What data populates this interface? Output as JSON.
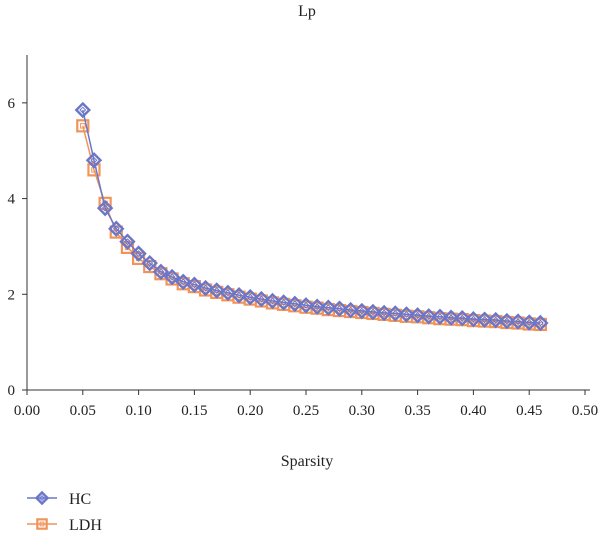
{
  "chart_data": {
    "type": "line",
    "title": "Lp",
    "xlabel": "Sparsity",
    "ylabel": "",
    "xlim": [
      0,
      0.5
    ],
    "ylim": [
      0,
      7
    ],
    "x_ticks": [
      "0.00",
      "0.05",
      "0.10",
      "0.15",
      "0.20",
      "0.25",
      "0.30",
      "0.35",
      "0.40",
      "0.45",
      "0.50"
    ],
    "y_ticks": [
      "0",
      "2",
      "4",
      "6"
    ],
    "grid": false,
    "legend_position": "bottom-left",
    "x": [
      0.05,
      0.06,
      0.07,
      0.08,
      0.09,
      0.1,
      0.11,
      0.12,
      0.13,
      0.14,
      0.15,
      0.16,
      0.17,
      0.18,
      0.19,
      0.2,
      0.21,
      0.22,
      0.23,
      0.24,
      0.25,
      0.26,
      0.27,
      0.28,
      0.29,
      0.3,
      0.31,
      0.32,
      0.33,
      0.34,
      0.35,
      0.36,
      0.37,
      0.38,
      0.39,
      0.4,
      0.41,
      0.42,
      0.43,
      0.44,
      0.45,
      0.46
    ],
    "series": [
      {
        "name": "HC",
        "color": "#6b76c9",
        "marker": "diamond",
        "values": [
          5.85,
          4.8,
          3.8,
          3.37,
          3.1,
          2.85,
          2.65,
          2.47,
          2.36,
          2.26,
          2.2,
          2.13,
          2.08,
          2.03,
          1.98,
          1.94,
          1.9,
          1.86,
          1.83,
          1.8,
          1.77,
          1.74,
          1.72,
          1.7,
          1.67,
          1.65,
          1.63,
          1.61,
          1.6,
          1.58,
          1.56,
          1.54,
          1.53,
          1.51,
          1.5,
          1.48,
          1.47,
          1.46,
          1.44,
          1.43,
          1.41,
          1.4
        ]
      },
      {
        "name": "LDH",
        "color": "#f0945a",
        "marker": "square",
        "values": [
          5.52,
          4.6,
          3.9,
          3.3,
          2.98,
          2.75,
          2.58,
          2.43,
          2.32,
          2.22,
          2.16,
          2.09,
          2.04,
          1.99,
          1.94,
          1.9,
          1.86,
          1.82,
          1.79,
          1.76,
          1.73,
          1.71,
          1.68,
          1.66,
          1.64,
          1.62,
          1.6,
          1.58,
          1.56,
          1.54,
          1.53,
          1.51,
          1.49,
          1.48,
          1.47,
          1.45,
          1.44,
          1.43,
          1.41,
          1.4,
          1.38,
          1.37
        ]
      }
    ]
  }
}
